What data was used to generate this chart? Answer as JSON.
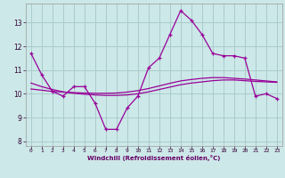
{
  "xlabel": "Windchill (Refroidissement éolien,°C)",
  "x_hours": [
    0,
    1,
    2,
    3,
    4,
    5,
    6,
    7,
    8,
    9,
    10,
    11,
    12,
    13,
    14,
    15,
    16,
    17,
    18,
    19,
    20,
    21,
    22,
    23
  ],
  "windchill": [
    11.7,
    10.8,
    10.1,
    9.9,
    10.3,
    10.3,
    9.6,
    8.5,
    8.5,
    9.4,
    9.9,
    11.1,
    11.5,
    12.5,
    13.5,
    13.1,
    12.5,
    11.7,
    11.6,
    11.6,
    11.5,
    9.9,
    10.0,
    9.8
  ],
  "trend1": [
    10.45,
    10.3,
    10.18,
    10.08,
    10.02,
    9.98,
    9.95,
    9.93,
    9.93,
    9.95,
    10.0,
    10.08,
    10.18,
    10.28,
    10.38,
    10.45,
    10.5,
    10.55,
    10.58,
    10.58,
    10.55,
    10.52,
    10.5,
    10.48
  ],
  "trend2": [
    10.2,
    10.15,
    10.1,
    10.07,
    10.05,
    10.03,
    10.02,
    10.02,
    10.03,
    10.07,
    10.13,
    10.22,
    10.33,
    10.44,
    10.54,
    10.6,
    10.65,
    10.68,
    10.68,
    10.65,
    10.62,
    10.58,
    10.54,
    10.5
  ],
  "line_color": "#990099",
  "bg_color": "#cce8e8",
  "grid_color": "#aacccc",
  "ylim": [
    7.8,
    13.8
  ],
  "yticks": [
    8,
    9,
    10,
    11,
    12,
    13
  ],
  "xlim": [
    -0.5,
    23.5
  ]
}
